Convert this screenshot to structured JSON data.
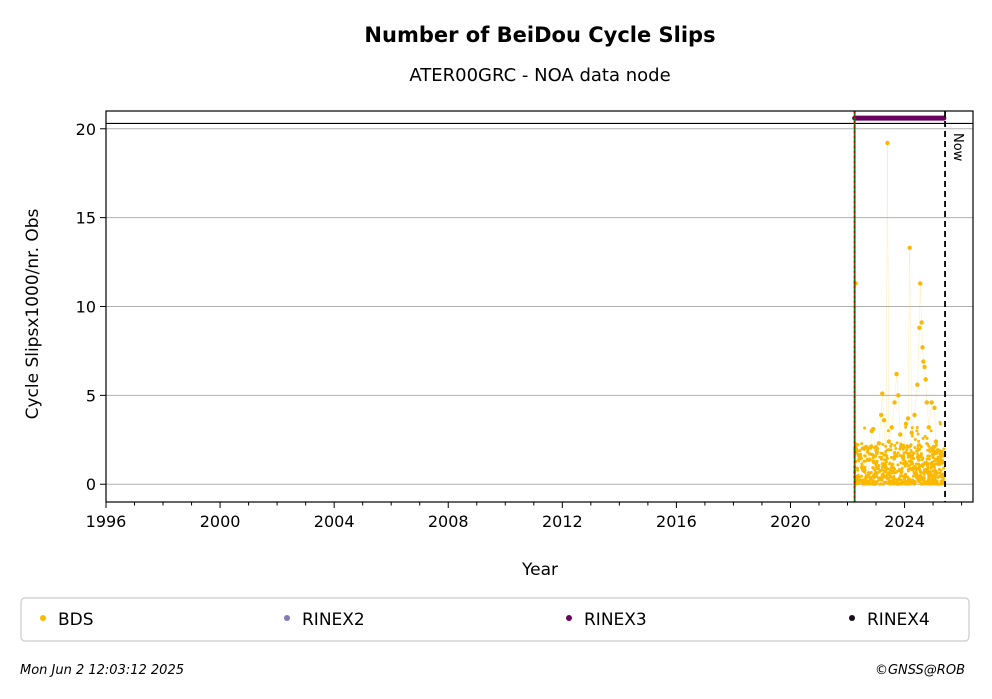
{
  "chart_data": {
    "type": "scatter",
    "title": "Number of BeiDou Cycle Slips",
    "subtitle": "ATER00GRC - NOA data node",
    "xlabel": "Year",
    "ylabel": "Cycle Slipsx1000/nr. Obs",
    "xlim": [
      1996,
      2026.4
    ],
    "ylim": [
      -1,
      21
    ],
    "xticks": [
      "1996",
      "2000",
      "2004",
      "2008",
      "2012",
      "2016",
      "2020",
      "2024"
    ],
    "xtick_values": [
      1996,
      2000,
      2004,
      2008,
      2012,
      2016,
      2020,
      2024
    ],
    "yticks": [
      "0",
      "5",
      "10",
      "15",
      "20"
    ],
    "ytick_values": [
      0,
      5,
      10,
      15,
      20
    ],
    "grid": "horizontal",
    "hline_y": 20.3,
    "series": [
      {
        "name": "BDS",
        "color": "#fbb800",
        "points": [
          [
            2022.28,
            11.3
          ],
          [
            2022.3,
            1.8
          ],
          [
            2022.35,
            0.4
          ],
          [
            2022.45,
            1.5
          ],
          [
            2022.55,
            0.8
          ],
          [
            2022.65,
            2.1
          ],
          [
            2022.75,
            0.6
          ],
          [
            2022.85,
            3.0
          ],
          [
            2022.9,
            3.1
          ],
          [
            2023.0,
            1.2
          ],
          [
            2023.1,
            2.3
          ],
          [
            2023.18,
            3.9
          ],
          [
            2023.22,
            5.1
          ],
          [
            2023.28,
            3.6
          ],
          [
            2023.35,
            0.9
          ],
          [
            2023.4,
            19.2
          ],
          [
            2023.45,
            2.4
          ],
          [
            2023.55,
            3.2
          ],
          [
            2023.65,
            4.6
          ],
          [
            2023.72,
            6.2
          ],
          [
            2023.78,
            5.0
          ],
          [
            2023.85,
            2.8
          ],
          [
            2023.95,
            1.5
          ],
          [
            2024.05,
            3.4
          ],
          [
            2024.12,
            3.7
          ],
          [
            2024.18,
            13.3
          ],
          [
            2024.25,
            2.9
          ],
          [
            2024.35,
            3.9
          ],
          [
            2024.45,
            5.6
          ],
          [
            2024.52,
            8.8
          ],
          [
            2024.55,
            11.3
          ],
          [
            2024.6,
            9.1
          ],
          [
            2024.63,
            7.7
          ],
          [
            2024.66,
            6.9
          ],
          [
            2024.7,
            6.6
          ],
          [
            2024.74,
            5.9
          ],
          [
            2024.78,
            4.6
          ],
          [
            2024.85,
            3.2
          ],
          [
            2024.95,
            4.6
          ],
          [
            2025.05,
            4.3
          ],
          [
            2025.1,
            2.4
          ],
          [
            2025.18,
            1.9
          ],
          [
            2025.28,
            1.6
          ],
          [
            2025.38,
            0.5
          ]
        ]
      },
      {
        "name": "RINEX2",
        "color": "#7e7bb9",
        "points": []
      },
      {
        "name": "RINEX3",
        "color": "#6a0060",
        "segment": {
          "x_start": 2022.25,
          "x_end": 2025.38,
          "y": 20.6
        }
      },
      {
        "name": "RINEX4",
        "color": "#1a0a1c",
        "points": []
      }
    ],
    "bulk_band": {
      "series": "BDS",
      "x_start": 2022.25,
      "x_end": 2025.42,
      "y_min": 0,
      "y_max": 2.3
    },
    "vlines": [
      {
        "x": 2022.25,
        "color": "#008000",
        "style": "solid"
      },
      {
        "x": 2022.25,
        "color": "#cc0000",
        "style": "dotted"
      },
      {
        "x": 2025.42,
        "color": "#000000",
        "style": "dashed",
        "label": "Now"
      }
    ],
    "legend": {
      "position": "below",
      "entries": [
        "BDS",
        "RINEX2",
        "RINEX3",
        "RINEX4"
      ]
    }
  },
  "footer": {
    "timestamp": "Mon Jun  2 12:03:12 2025",
    "copyright": "©GNSS@ROB"
  }
}
